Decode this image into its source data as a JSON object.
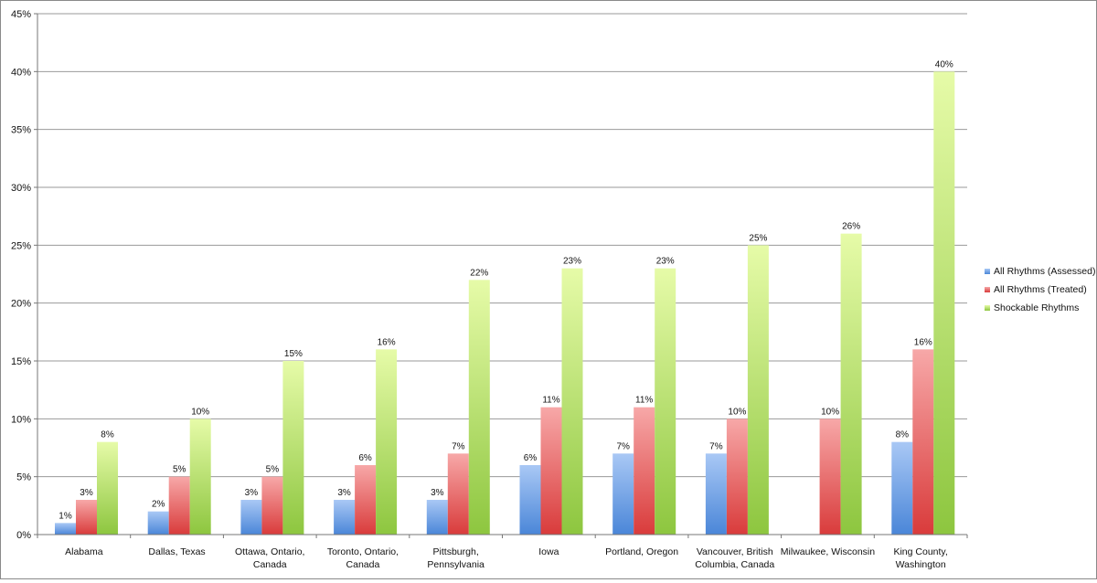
{
  "chart_data": {
    "type": "bar",
    "categories": [
      [
        "Alabama"
      ],
      [
        "Dallas, Texas"
      ],
      [
        "Ottawa, Ontario,",
        "Canada"
      ],
      [
        "Toronto, Ontario,",
        "Canada"
      ],
      [
        "Pittsburgh,",
        "Pennsylvania"
      ],
      [
        "Iowa"
      ],
      [
        "Portland, Oregon"
      ],
      [
        "Vancouver, British",
        "Columbia, Canada"
      ],
      [
        "Milwaukee, Wisconsin"
      ],
      [
        "King County,",
        "Washington"
      ]
    ],
    "series": [
      {
        "name": "All Rhythms (Assessed)",
        "color": "#4a86d8",
        "colorLight": "#a9c8f5",
        "values": [
          1,
          2,
          3,
          3,
          3,
          6,
          7,
          7,
          null,
          8
        ],
        "labels": [
          "1%",
          "2%",
          "3%",
          "3%",
          "3%",
          "6%",
          "7%",
          "7%",
          "",
          "8%"
        ]
      },
      {
        "name": "All Rhythms (Treated)",
        "color": "#d93b3b",
        "colorLight": "#f7a8a8",
        "values": [
          3,
          5,
          5,
          6,
          7,
          11,
          11,
          10,
          10,
          16
        ],
        "labels": [
          "3%",
          "5%",
          "5%",
          "6%",
          "7%",
          "11%",
          "11%",
          "10%",
          "10%",
          "16%"
        ]
      },
      {
        "name": "Shockable Rhythms",
        "color": "#8dc63f",
        "colorLight": "#e6fba8",
        "values": [
          8,
          10,
          15,
          16,
          22,
          23,
          23,
          25,
          26,
          40
        ],
        "labels": [
          "8%",
          "10%",
          "15%",
          "16%",
          "22%",
          "23%",
          "23%",
          "25%",
          "26%",
          "40%"
        ]
      }
    ],
    "y_ticks": [
      "0%",
      "5%",
      "10%",
      "15%",
      "20%",
      "25%",
      "30%",
      "35%",
      "40%",
      "45%"
    ],
    "ylim": [
      0,
      45
    ],
    "grid": true,
    "legend": "right"
  }
}
